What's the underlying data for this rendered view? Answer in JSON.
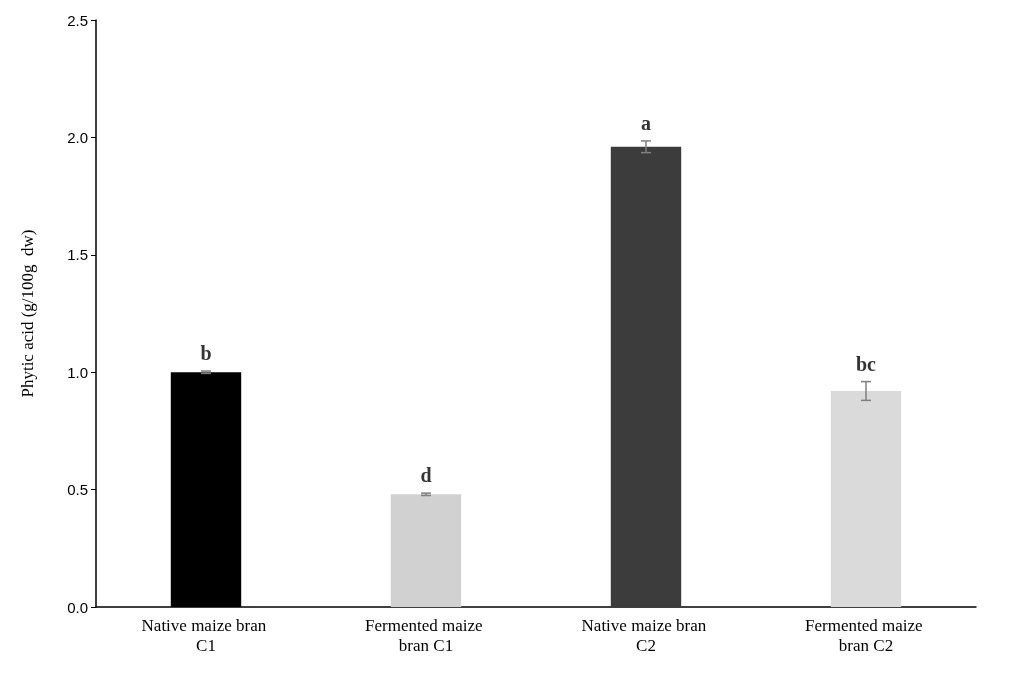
{
  "chart_data": {
    "type": "bar",
    "ylabel": "Phytic acid (g/100g  dw)",
    "categories": [
      "Native maize bran C1",
      "Fermented maize bran C1",
      "Native maize bran C2",
      "Fermented maize bran C2"
    ],
    "values": [
      1.0,
      0.48,
      1.96,
      0.92
    ],
    "errors": [
      0.005,
      0.005,
      0.025,
      0.04
    ],
    "colors": [
      "#000000",
      "#d0d1d0",
      "#3c3c3c",
      "#dadada"
    ],
    "ylim": [
      0,
      2.5
    ],
    "yticks": [
      {
        "value": 0,
        "label": "0.0"
      },
      0.5,
      {
        "value": 1,
        "label": "1.0"
      },
      1.5,
      {
        "value": 2,
        "label": "2.0"
      },
      2.5
    ],
    "grid": false,
    "annotations": [
      {
        "text": "b",
        "x": "Native maize bran C1",
        "y": 1.005
      },
      {
        "text": "d",
        "x": "Fermented maize bran C1",
        "y": 0.485
      },
      {
        "text": "a",
        "x": "Native maize bran C2",
        "y": 1.985
      },
      {
        "text": "bc",
        "x": "Fermented maize bran C2",
        "y": 0.96
      }
    ]
  }
}
